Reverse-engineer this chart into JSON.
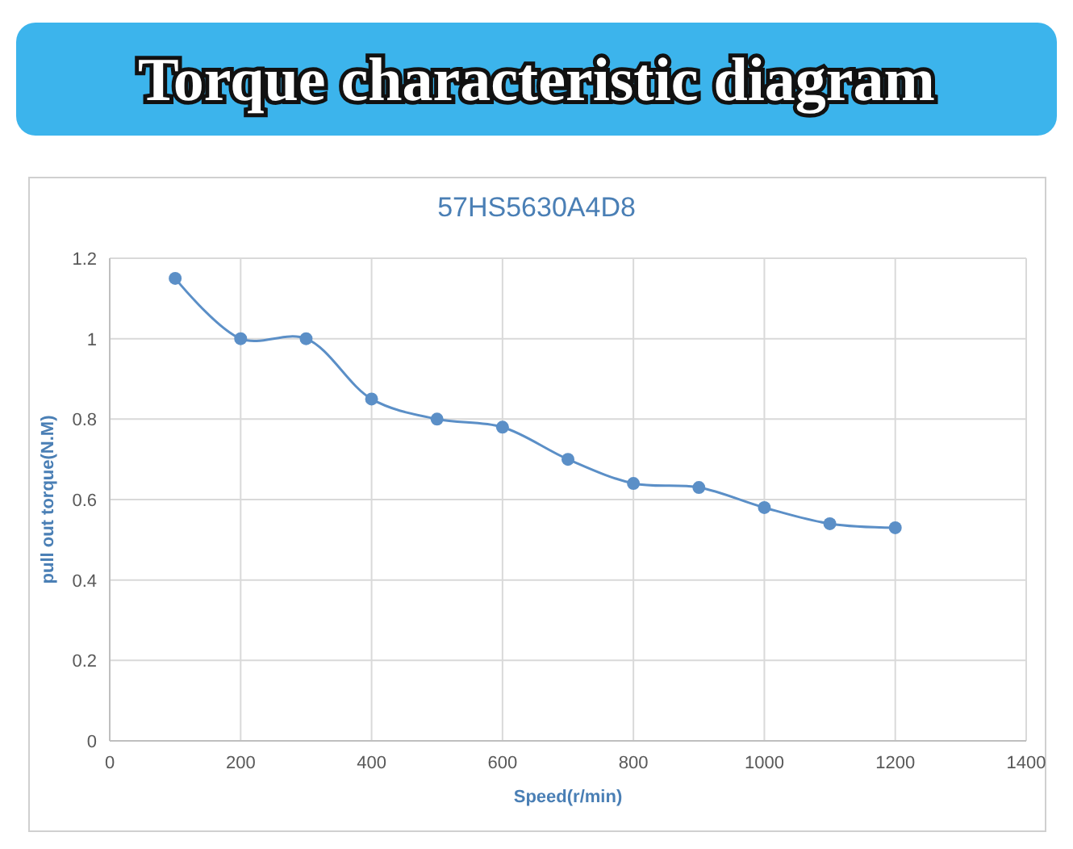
{
  "chart_data": {
    "type": "line",
    "title": "Torque characteristic diagram",
    "subtitle": "57HS5630A4D8",
    "xlabel": "Speed(r/min)",
    "ylabel": "pull out torque(N.M)",
    "x": [
      100,
      200,
      300,
      400,
      500,
      600,
      700,
      800,
      900,
      1000,
      1100,
      1200
    ],
    "series": [
      {
        "color": "#5b8fc7",
        "values": [
          1.15,
          1.0,
          1.0,
          0.85,
          0.8,
          0.78,
          0.7,
          0.64,
          0.63,
          0.58,
          0.54,
          0.53
        ]
      }
    ],
    "xlim": [
      0,
      1400
    ],
    "xticks": [
      0,
      200,
      400,
      600,
      800,
      1000,
      1200,
      1400
    ],
    "ylim": [
      0,
      1.2
    ],
    "yticks": [
      0,
      0.2,
      0.4,
      0.6,
      0.8,
      1,
      1.2
    ],
    "grid": true,
    "marker": "circle",
    "line_style": "solid"
  }
}
